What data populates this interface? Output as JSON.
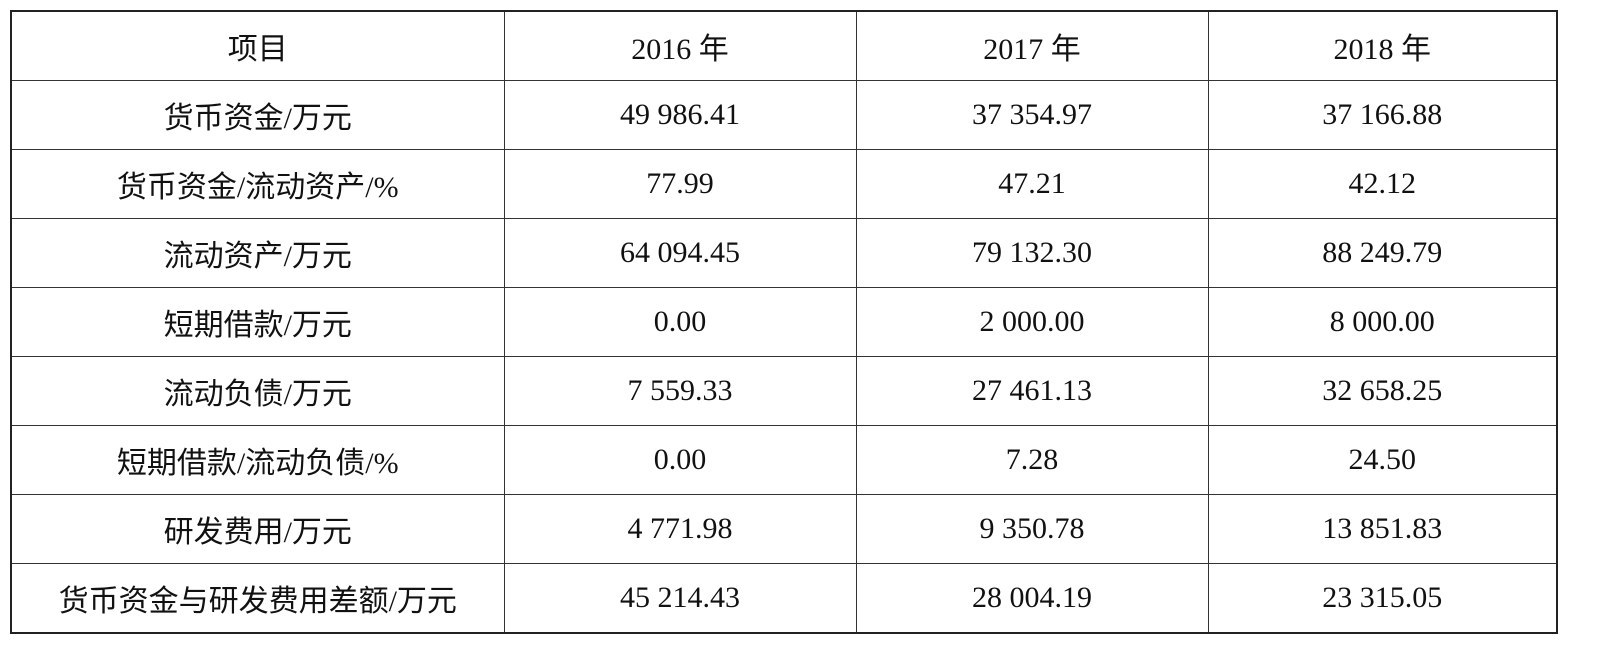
{
  "table": {
    "header": [
      "项目",
      "2016 年",
      "2017 年",
      "2018 年"
    ],
    "rows": [
      [
        "货币资金/万元",
        "49 986.41",
        "37 354.97",
        "37 166.88"
      ],
      [
        "货币资金/流动资产/%",
        "77.99",
        "47.21",
        "42.12"
      ],
      [
        "流动资产/万元",
        "64 094.45",
        "79 132.30",
        "88 249.79"
      ],
      [
        "短期借款/万元",
        "0.00",
        "2 000.00",
        "8 000.00"
      ],
      [
        "流动负债/万元",
        "7 559.33",
        "27 461.13",
        "32 658.25"
      ],
      [
        "短期借款/流动负债/%",
        "0.00",
        "7.28",
        "24.50"
      ],
      [
        "研发费用/万元",
        "4 771.98",
        "9 350.78",
        "13 851.83"
      ],
      [
        "货币资金与研发费用差额/万元",
        "45 214.43",
        "28 004.19",
        "23 315.05"
      ]
    ]
  }
}
